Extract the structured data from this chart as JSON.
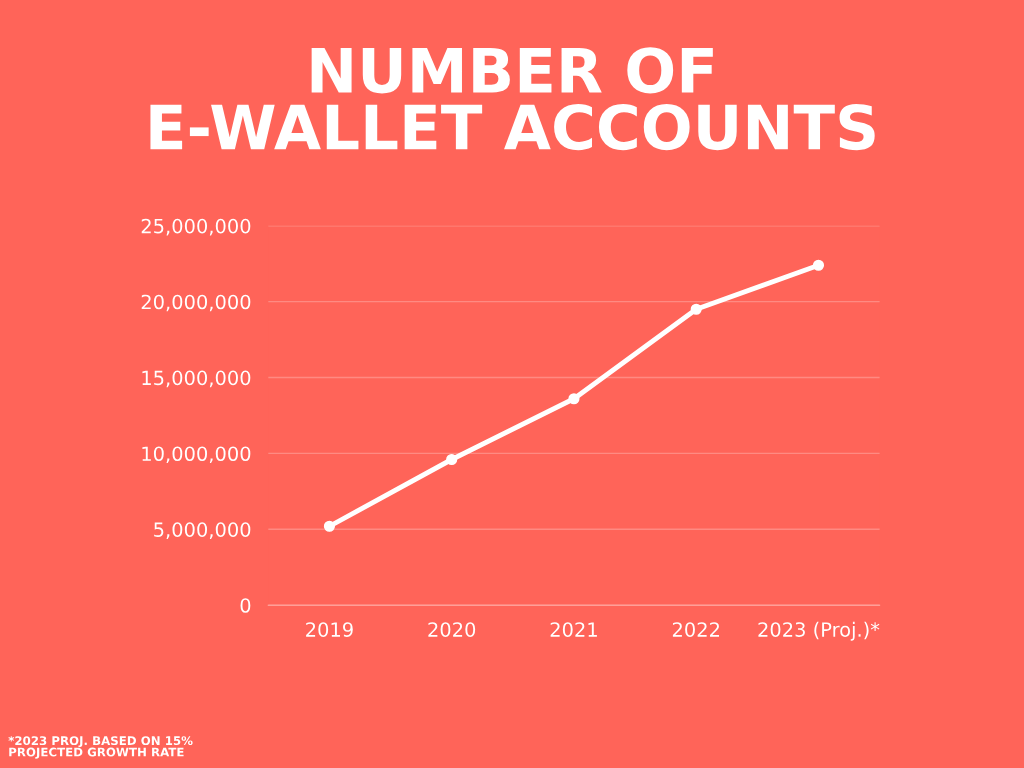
{
  "chart_data": {
    "type": "line",
    "title": "NUMBER OF\nE-WALLET ACCOUNTS",
    "categories": [
      "2019",
      "2020",
      "2021",
      "2022",
      "2023 (Proj.)*"
    ],
    "series": [
      {
        "color": "#ffffff",
        "values": [
          5200000,
          9600000,
          13600000,
          19500000,
          22400000
        ]
      }
    ],
    "ylim": [
      0,
      25000000
    ],
    "yticks": [
      0,
      {
        "value": 5000000,
        "label": "5,000,000"
      },
      {
        "value": 10000000,
        "label": "10,000,000"
      },
      {
        "value": 15000000,
        "label": "15,000,000"
      },
      {
        "value": 20000000,
        "label": "20,000,000"
      },
      {
        "value": 25000000,
        "label": "25,000,000"
      }
    ],
    "grid": "y",
    "marker": "circle",
    "line_style": "solid",
    "annotations": [
      "*2023 PROJ. BASED ON 15%\nPROJECTED GROWTH RATE"
    ]
  }
}
